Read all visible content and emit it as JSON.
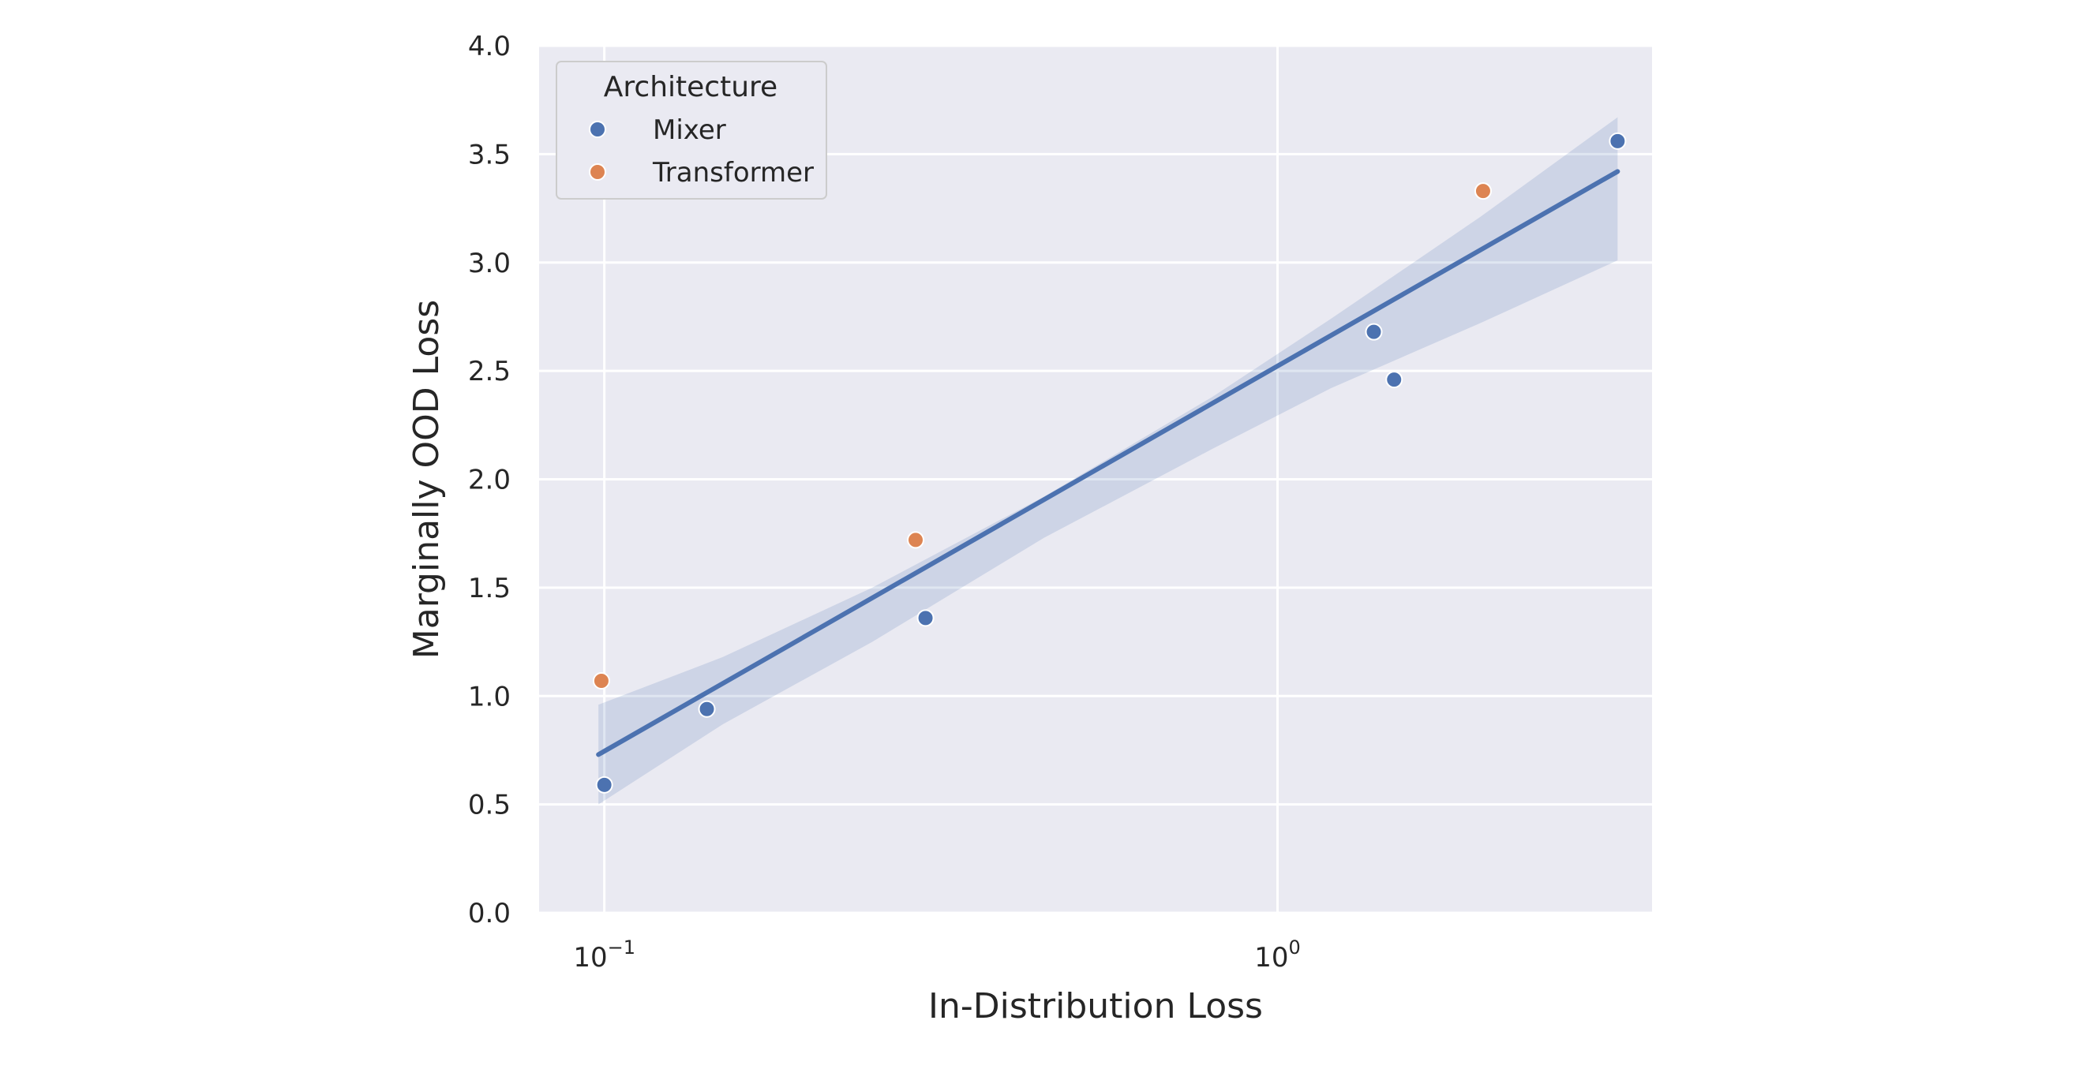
{
  "chart_data": {
    "type": "scatter",
    "xscale": "log",
    "xlabel": "In-Distribution Loss",
    "ylabel": "Marginally OOD Loss",
    "xlim": [
      0.08,
      3.6
    ],
    "ylim": [
      0.0,
      4.0
    ],
    "yticks": [
      "0.0",
      "0.5",
      "1.0",
      "1.5",
      "2.0",
      "2.5",
      "3.0",
      "3.5",
      "4.0"
    ],
    "xticks": [
      {
        "value": 0.1,
        "base": "10",
        "exp": "−1"
      },
      {
        "value": 1,
        "base": "10",
        "exp": "0"
      }
    ],
    "grid": true,
    "legend": {
      "title": "Architecture",
      "placement": "top-left"
    },
    "series": [
      {
        "name": "Mixer",
        "color": "#4c72b0",
        "points": [
          {
            "x": 0.1,
            "y": 0.59
          },
          {
            "x": 0.142,
            "y": 0.94
          },
          {
            "x": 0.3,
            "y": 1.36
          },
          {
            "x": 1.39,
            "y": 2.68
          },
          {
            "x": 1.49,
            "y": 2.46
          },
          {
            "x": 3.2,
            "y": 3.56
          }
        ]
      },
      {
        "name": "Transformer",
        "color": "#dd8452",
        "points": [
          {
            "x": 0.099,
            "y": 1.07
          },
          {
            "x": 0.29,
            "y": 1.72
          },
          {
            "x": 2.02,
            "y": 3.33
          }
        ]
      }
    ],
    "regression": {
      "color": "#4c72b0",
      "band_color": "#4c72b0",
      "line": [
        {
          "x": 0.098,
          "y": 0.73
        },
        {
          "x": 3.2,
          "y": 3.42
        }
      ],
      "band_upper": [
        {
          "x": 0.098,
          "y": 0.96
        },
        {
          "x": 0.15,
          "y": 1.18
        },
        {
          "x": 0.25,
          "y": 1.5
        },
        {
          "x": 0.45,
          "y": 1.92
        },
        {
          "x": 0.8,
          "y": 2.38
        },
        {
          "x": 1.2,
          "y": 2.74
        },
        {
          "x": 2.0,
          "y": 3.21
        },
        {
          "x": 3.2,
          "y": 3.67
        }
      ],
      "band_lower": [
        {
          "x": 0.098,
          "y": 0.5
        },
        {
          "x": 0.15,
          "y": 0.87
        },
        {
          "x": 0.25,
          "y": 1.25
        },
        {
          "x": 0.45,
          "y": 1.73
        },
        {
          "x": 0.8,
          "y": 2.14
        },
        {
          "x": 1.2,
          "y": 2.42
        },
        {
          "x": 2.0,
          "y": 2.72
        },
        {
          "x": 3.2,
          "y": 3.01
        }
      ]
    }
  }
}
